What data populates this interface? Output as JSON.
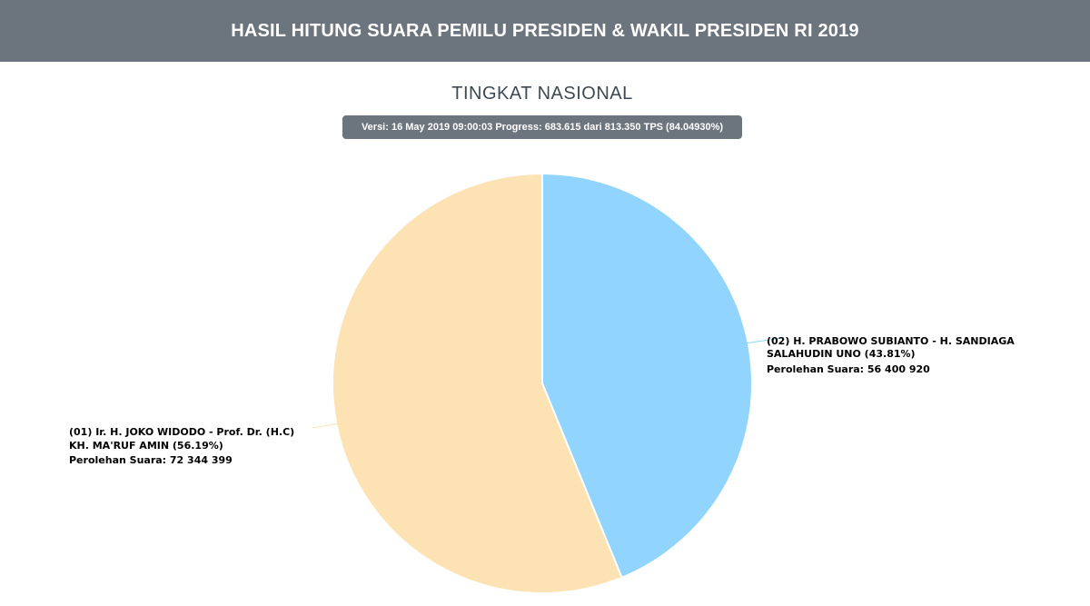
{
  "header": {
    "title": "HASIL HITUNG SUARA PEMILU PRESIDEN & WAKIL PRESIDEN RI 2019"
  },
  "section": {
    "title": "TINGKAT NASIONAL"
  },
  "version": {
    "text": "Versi: 16 May 2019 09:00:03 Progress: 683.615 dari 813.350 TPS (84.04930%)"
  },
  "chart_data": {
    "type": "pie",
    "title": "TINGKAT NASIONAL",
    "legend": "none",
    "slices": [
      {
        "label_line1": "(02) H. PRABOWO SUBIANTO - H. SANDIAGA",
        "label_line2": "SALAHUDIN UNO (43.81%)",
        "votes_text": "Perolehan Suara: 56 400 920",
        "percent": 43.81,
        "votes": 56400920,
        "color": "#91d4fd"
      },
      {
        "label_line1": "(01) Ir. H. JOKO WIDODO - Prof. Dr. (H.C)",
        "label_line2": "KH. MA'RUF AMIN (56.19%)",
        "votes_text": "Perolehan Suara: 72 344 399",
        "percent": 56.19,
        "votes": 72344399,
        "color": "#fde2b3"
      }
    ]
  }
}
